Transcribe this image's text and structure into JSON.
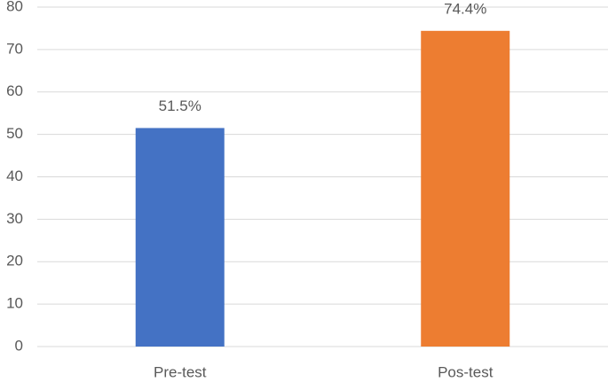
{
  "chart_data": {
    "type": "bar",
    "categories": [
      "Pre-test",
      "Pos-test"
    ],
    "values": [
      51.5,
      74.4
    ],
    "value_labels": [
      "51.5%",
      "74.4%"
    ],
    "colors": [
      "#4472c4",
      "#ed7d31"
    ],
    "ylim": [
      0,
      80
    ],
    "yticks": [
      0,
      10,
      20,
      30,
      40,
      50,
      60,
      70,
      80
    ],
    "grid": true
  }
}
